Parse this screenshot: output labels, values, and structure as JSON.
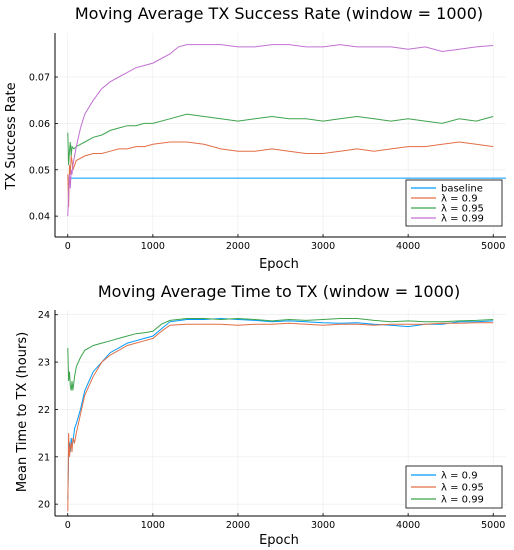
{
  "chart_data": [
    {
      "type": "line",
      "title": "Moving Average TX Success Rate (window = 1000)",
      "xlabel": "Epoch",
      "ylabel": "TX Success Rate",
      "xlim": [
        -150,
        5150
      ],
      "ylim": [
        0.0355,
        0.0795
      ],
      "xticks": [
        0,
        1000,
        2000,
        3000,
        4000,
        5000
      ],
      "yticks": [
        0.04,
        0.05,
        0.06,
        0.07
      ],
      "xtick_labels": [
        "0",
        "1000",
        "2000",
        "3000",
        "4000",
        "5000"
      ],
      "ytick_labels": [
        "0.04",
        "0.05",
        "0.06",
        "0.07"
      ],
      "grid": true,
      "legend_position": "bottom-right",
      "series": [
        {
          "name": "baseline",
          "color": "#009AFA",
          "x": [
            0,
            5150
          ],
          "y": [
            0.0482,
            0.0482
          ]
        },
        {
          "name": "λ = 0.9",
          "color": "#E26F46",
          "x": [
            0,
            10,
            20,
            30,
            40,
            50,
            60,
            80,
            100,
            150,
            200,
            300,
            400,
            500,
            600,
            700,
            800,
            900,
            1000,
            1200,
            1400,
            1600,
            1800,
            2000,
            2200,
            2400,
            2600,
            2800,
            3000,
            3200,
            3400,
            3600,
            3800,
            4000,
            4200,
            4400,
            4600,
            4800,
            5000
          ],
          "y": [
            0.049,
            0.042,
            0.051,
            0.049,
            0.053,
            0.052,
            0.05,
            0.051,
            0.052,
            0.0525,
            0.053,
            0.0535,
            0.0535,
            0.054,
            0.0545,
            0.0545,
            0.055,
            0.055,
            0.0555,
            0.056,
            0.056,
            0.0555,
            0.0545,
            0.054,
            0.054,
            0.0545,
            0.054,
            0.0535,
            0.0535,
            0.054,
            0.0545,
            0.054,
            0.0545,
            0.055,
            0.055,
            0.0555,
            0.056,
            0.0555,
            0.055
          ]
        },
        {
          "name": "λ = 0.95",
          "color": "#3DA44D",
          "x": [
            0,
            10,
            20,
            30,
            40,
            50,
            70,
            100,
            150,
            200,
            300,
            400,
            500,
            600,
            700,
            800,
            900,
            1000,
            1200,
            1400,
            1600,
            1800,
            2000,
            2200,
            2400,
            2600,
            2800,
            3000,
            3200,
            3400,
            3600,
            3800,
            4000,
            4200,
            4400,
            4600,
            4800,
            5000
          ],
          "y": [
            0.058,
            0.051,
            0.054,
            0.056,
            0.053,
            0.055,
            0.0545,
            0.055,
            0.0555,
            0.056,
            0.057,
            0.0575,
            0.0585,
            0.059,
            0.0595,
            0.0595,
            0.06,
            0.06,
            0.061,
            0.062,
            0.0615,
            0.061,
            0.0605,
            0.061,
            0.0615,
            0.061,
            0.061,
            0.0605,
            0.061,
            0.0615,
            0.061,
            0.0605,
            0.061,
            0.0605,
            0.06,
            0.061,
            0.0605,
            0.0615
          ]
        },
        {
          "name": "λ = 0.99",
          "color": "#C271D2",
          "x": [
            0,
            10,
            20,
            30,
            40,
            50,
            60,
            80,
            100,
            150,
            200,
            300,
            400,
            500,
            600,
            700,
            800,
            900,
            1000,
            1100,
            1200,
            1300,
            1400,
            1600,
            1800,
            2000,
            2200,
            2400,
            2600,
            2800,
            3000,
            3200,
            3400,
            3600,
            3800,
            4000,
            4200,
            4400,
            4600,
            4800,
            5000
          ],
          "y": [
            0.04,
            0.045,
            0.049,
            0.046,
            0.05,
            0.049,
            0.051,
            0.053,
            0.055,
            0.059,
            0.062,
            0.065,
            0.0675,
            0.069,
            0.07,
            0.071,
            0.072,
            0.0725,
            0.073,
            0.074,
            0.075,
            0.0765,
            0.077,
            0.077,
            0.077,
            0.0765,
            0.0765,
            0.077,
            0.077,
            0.0765,
            0.0765,
            0.077,
            0.0765,
            0.0765,
            0.0765,
            0.076,
            0.0765,
            0.0755,
            0.076,
            0.0765,
            0.0768
          ]
        }
      ]
    },
    {
      "type": "line",
      "title": "Moving Average Time to TX (window = 1000)",
      "xlabel": "Epoch",
      "ylabel": "Mean Time to TX (hours)",
      "xlim": [
        -150,
        5150
      ],
      "ylim": [
        19.75,
        24.1
      ],
      "xticks": [
        0,
        1000,
        2000,
        3000,
        4000,
        5000
      ],
      "yticks": [
        20,
        21,
        22,
        23,
        24
      ],
      "xtick_labels": [
        "0",
        "1000",
        "2000",
        "3000",
        "4000",
        "5000"
      ],
      "ytick_labels": [
        "20",
        "21",
        "22",
        "23",
        "24"
      ],
      "grid": true,
      "legend_position": "bottom-right",
      "series": [
        {
          "name": "λ = 0.9",
          "color": "#009AFA",
          "x": [
            0,
            10,
            20,
            30,
            40,
            50,
            60,
            80,
            100,
            150,
            200,
            300,
            400,
            500,
            600,
            700,
            800,
            900,
            1000,
            1100,
            1200,
            1400,
            1600,
            1800,
            2000,
            2200,
            2400,
            2600,
            2800,
            3000,
            3200,
            3400,
            3600,
            3800,
            4000,
            4200,
            4400,
            4600,
            4800,
            5000
          ],
          "y": [
            20.1,
            21.0,
            21.3,
            21.1,
            21.4,
            21.2,
            21.3,
            21.6,
            21.7,
            22.0,
            22.4,
            22.8,
            23.0,
            23.2,
            23.3,
            23.4,
            23.45,
            23.5,
            23.55,
            23.7,
            23.85,
            23.9,
            23.9,
            23.92,
            23.9,
            23.88,
            23.85,
            23.87,
            23.85,
            23.83,
            23.82,
            23.83,
            23.8,
            23.78,
            23.75,
            23.8,
            23.8,
            23.85,
            23.85,
            23.87
          ]
        },
        {
          "name": "λ = 0.95",
          "color": "#E26F46",
          "x": [
            0,
            10,
            20,
            30,
            40,
            50,
            60,
            80,
            100,
            150,
            200,
            300,
            400,
            500,
            600,
            700,
            800,
            900,
            1000,
            1100,
            1200,
            1400,
            1600,
            1800,
            2000,
            2200,
            2400,
            2600,
            2800,
            3000,
            3200,
            3400,
            3600,
            3800,
            4000,
            4200,
            4400,
            4600,
            4800,
            5000
          ],
          "y": [
            19.85,
            21.5,
            21.0,
            21.2,
            21.3,
            21.1,
            21.4,
            21.3,
            21.5,
            21.9,
            22.3,
            22.7,
            23.0,
            23.15,
            23.25,
            23.35,
            23.4,
            23.45,
            23.5,
            23.65,
            23.78,
            23.8,
            23.8,
            23.8,
            23.78,
            23.8,
            23.8,
            23.82,
            23.8,
            23.78,
            23.8,
            23.8,
            23.78,
            23.8,
            23.8,
            23.8,
            23.82,
            23.82,
            23.83,
            23.83
          ]
        },
        {
          "name": "λ = 0.99",
          "color": "#3DA44D",
          "x": [
            0,
            10,
            20,
            30,
            40,
            50,
            60,
            80,
            100,
            150,
            200,
            300,
            400,
            500,
            600,
            700,
            800,
            900,
            1000,
            1100,
            1200,
            1400,
            1600,
            1800,
            2000,
            2200,
            2400,
            2600,
            2800,
            3000,
            3200,
            3400,
            3600,
            3800,
            4000,
            4200,
            4400,
            4600,
            4800,
            5000
          ],
          "y": [
            23.3,
            22.6,
            22.8,
            22.5,
            22.4,
            22.6,
            22.4,
            22.7,
            22.9,
            23.1,
            23.25,
            23.35,
            23.4,
            23.45,
            23.5,
            23.55,
            23.6,
            23.62,
            23.65,
            23.8,
            23.88,
            23.92,
            23.92,
            23.9,
            23.92,
            23.9,
            23.87,
            23.9,
            23.88,
            23.9,
            23.92,
            23.92,
            23.88,
            23.85,
            23.87,
            23.85,
            23.85,
            23.87,
            23.88,
            23.9
          ]
        }
      ]
    }
  ]
}
